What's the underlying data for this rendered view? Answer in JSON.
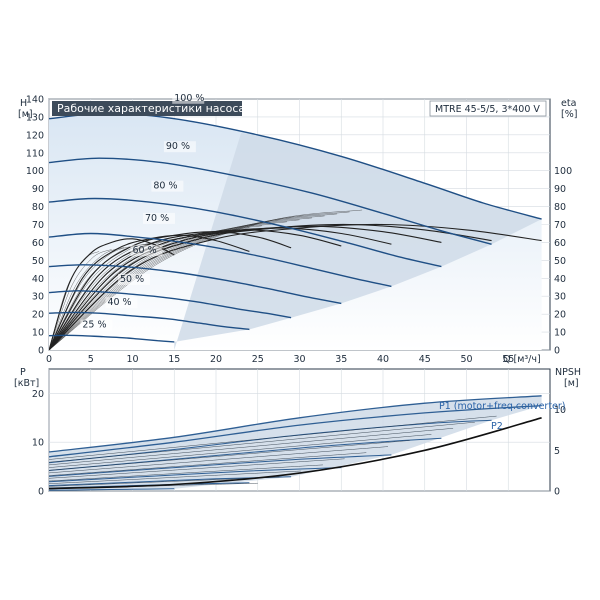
{
  "title": "Рабочие характеристики насоса",
  "model": "MTRE 45-5/5, 3*400 V",
  "colors": {
    "frame": "#2b3a4a",
    "head_curve": "#1f4f85",
    "eta_curve": "#222222",
    "envelope_fill": "#cfdbe8",
    "gradient_top": "#e3edf7",
    "power_curve": "#2f5f94",
    "npsh_curve": "#111111"
  },
  "chart_data": [
    {
      "type": "line",
      "xlabel": "Q [м³/ч]",
      "ylabel": "H\n[м]",
      "y2label": "eta\n[%]",
      "xlim": [
        0,
        60
      ],
      "ylim": [
        0,
        140
      ],
      "x_ticks": [
        0,
        5,
        10,
        15,
        20,
        25,
        30,
        35,
        40,
        45,
        50,
        55
      ],
      "y_ticks": [
        0,
        10,
        20,
        30,
        40,
        50,
        60,
        70,
        80,
        90,
        100,
        110,
        120,
        130,
        140
      ],
      "y2_ticks": [
        0,
        10,
        20,
        30,
        40,
        50,
        60,
        70,
        80,
        90,
        100
      ],
      "y2lim": [
        0,
        140
      ],
      "grid": true,
      "head_series": [
        {
          "name": "100 %",
          "q_max": 59,
          "points": [
            [
              0,
              129
            ],
            [
              7,
              132
            ],
            [
              15,
              129
            ],
            [
              25,
              120
            ],
            [
              35,
              108
            ],
            [
              45,
              93
            ],
            [
              52,
              82
            ],
            [
              59,
              73
            ]
          ]
        },
        {
          "name": "90 %",
          "q_max": 53,
          "points": [
            [
              0,
              104.5
            ],
            [
              6,
              107
            ],
            [
              13.5,
              104.5
            ],
            [
              22.5,
              97
            ],
            [
              31.5,
              87.5
            ],
            [
              40.5,
              75.5
            ],
            [
              47,
              66.5
            ],
            [
              53,
              59
            ]
          ]
        },
        {
          "name": "80 %",
          "q_max": 47,
          "points": [
            [
              0,
              82.5
            ],
            [
              5.5,
              84.5
            ],
            [
              12,
              82.5
            ],
            [
              20,
              77
            ],
            [
              28,
              69
            ],
            [
              36,
              59.5
            ],
            [
              41.5,
              52.5
            ],
            [
              47,
              46.5
            ]
          ]
        },
        {
          "name": "70 %",
          "q_max": 41,
          "points": [
            [
              0,
              63
            ],
            [
              5,
              65
            ],
            [
              10.5,
              63
            ],
            [
              17.5,
              59
            ],
            [
              24.5,
              53
            ],
            [
              31.5,
              45.5
            ],
            [
              36.5,
              40
            ],
            [
              41,
              35.5
            ]
          ]
        },
        {
          "name": "60 %",
          "q_max": 35,
          "points": [
            [
              0,
              46.5
            ],
            [
              4,
              47.5
            ],
            [
              9,
              46.5
            ],
            [
              15,
              43.5
            ],
            [
              21,
              39
            ],
            [
              27,
              33.5
            ],
            [
              31,
              29.5
            ],
            [
              35,
              26
            ]
          ]
        },
        {
          "name": "50 %",
          "q_max": 29,
          "points": [
            [
              0,
              32
            ],
            [
              3.5,
              33
            ],
            [
              7.5,
              32
            ],
            [
              12.5,
              30
            ],
            [
              17.5,
              27
            ],
            [
              22.5,
              23
            ],
            [
              26,
              20.5
            ],
            [
              29,
              18
            ]
          ]
        },
        {
          "name": "40 %",
          "q_max": 24,
          "points": [
            [
              0,
              20.5
            ],
            [
              3,
              21
            ],
            [
              6,
              20.5
            ],
            [
              10,
              19
            ],
            [
              14,
              17.5
            ],
            [
              18,
              15
            ],
            [
              21,
              13
            ],
            [
              24,
              11.5
            ]
          ]
        },
        {
          "name": "25 %",
          "q_max": 15,
          "points": [
            [
              0,
              8
            ],
            [
              2,
              8.2
            ],
            [
              4,
              8
            ],
            [
              6.5,
              7.4
            ],
            [
              9,
              6.8
            ],
            [
              11,
              6
            ],
            [
              13,
              5.2
            ],
            [
              15,
              4.5
            ]
          ]
        }
      ],
      "eta_series": [
        {
          "name": "eta 100 %",
          "points": [
            [
              0,
              0
            ],
            [
              10,
              45
            ],
            [
              20,
              62
            ],
            [
              30,
              68
            ],
            [
              40,
              70
            ],
            [
              50,
              67
            ],
            [
              59,
              61
            ]
          ]
        },
        {
          "name": "eta 90 %",
          "points": [
            [
              0,
              0
            ],
            [
              9,
              45
            ],
            [
              18,
              62
            ],
            [
              27,
              68
            ],
            [
              36,
              70
            ],
            [
              45,
              67
            ],
            [
              53,
              61
            ]
          ]
        },
        {
          "name": "eta 80 %",
          "points": [
            [
              0,
              0
            ],
            [
              8,
              44
            ],
            [
              16,
              61
            ],
            [
              24,
              67
            ],
            [
              32,
              69
            ],
            [
              40,
              66
            ],
            [
              47,
              60
            ]
          ]
        },
        {
          "name": "eta 70 %",
          "points": [
            [
              0,
              0
            ],
            [
              7,
              43
            ],
            [
              14,
              60
            ],
            [
              21,
              66
            ],
            [
              28,
              68
            ],
            [
              35,
              65
            ],
            [
              41,
              59
            ]
          ]
        },
        {
          "name": "eta 60 %",
          "points": [
            [
              0,
              0
            ],
            [
              6,
              42
            ],
            [
              12,
              59
            ],
            [
              18,
              65
            ],
            [
              24,
              67
            ],
            [
              30,
              64
            ],
            [
              35,
              58
            ]
          ]
        },
        {
          "name": "eta 50 %",
          "points": [
            [
              0,
              0
            ],
            [
              5,
              41
            ],
            [
              10,
              58
            ],
            [
              15,
              64
            ],
            [
              20,
              66
            ],
            [
              25,
              63
            ],
            [
              29,
              57
            ]
          ]
        },
        {
          "name": "eta 40 %",
          "points": [
            [
              0,
              0
            ],
            [
              4,
              40
            ],
            [
              8,
              56
            ],
            [
              12,
              62
            ],
            [
              16,
              64
            ],
            [
              20,
              61
            ],
            [
              24,
              55
            ]
          ]
        },
        {
          "name": "eta 25 %",
          "points": [
            [
              0,
              0
            ],
            [
              2.5,
              38
            ],
            [
              5,
              54
            ],
            [
              7.5,
              60
            ],
            [
              10,
              62
            ],
            [
              12.5,
              59
            ],
            [
              15,
              53
            ]
          ]
        }
      ],
      "speed_labels": [
        "100 %",
        "90 %",
        "80 %",
        "70 %",
        "60 %",
        "50 %",
        "40 %",
        "25 %"
      ]
    },
    {
      "type": "line",
      "xlabel": "",
      "ylabel": "P\n[кВт]",
      "y2label": "NPSH\n[м]",
      "xlim": [
        0,
        60
      ],
      "ylim": [
        0,
        25
      ],
      "y_ticks": [
        0,
        10,
        20
      ],
      "y2lim": [
        0,
        15
      ],
      "y2_ticks": [
        0,
        5,
        10
      ],
      "grid": true,
      "series_labels": [
        "P1 (motor+freq.converter)",
        "P2"
      ],
      "power_series": [
        {
          "name": "P1 (motor+freq.converter)",
          "points": [
            [
              0,
              8
            ],
            [
              15,
              11
            ],
            [
              30,
              15
            ],
            [
              45,
              18
            ],
            [
              59,
              19.5
            ]
          ]
        },
        {
          "name": "P2",
          "points": [
            [
              0,
              7
            ],
            [
              15,
              10
            ],
            [
              30,
              13.5
            ],
            [
              45,
              16
            ],
            [
              59,
              17.5
            ]
          ]
        },
        {
          "name": "P 90 %",
          "points": [
            [
              0,
              5.8
            ],
            [
              15,
              8.5
            ],
            [
              30,
              11.5
            ],
            [
              45,
              13.8
            ],
            [
              53,
              14.5
            ]
          ]
        },
        {
          "name": "P 80 %",
          "points": [
            [
              0,
              4.2
            ],
            [
              15,
              6.5
            ],
            [
              30,
              8.8
            ],
            [
              41,
              10.2
            ],
            [
              47,
              10.8
            ]
          ]
        },
        {
          "name": "P 70 %",
          "points": [
            [
              0,
              3
            ],
            [
              15,
              4.8
            ],
            [
              30,
              6.5
            ],
            [
              41,
              7.4
            ]
          ]
        },
        {
          "name": "P 60 %",
          "points": [
            [
              0,
              1.9
            ],
            [
              12,
              3
            ],
            [
              24,
              4.1
            ],
            [
              35,
              4.8
            ]
          ]
        },
        {
          "name": "P 50 %",
          "points": [
            [
              0,
              1.1
            ],
            [
              10,
              1.8
            ],
            [
              20,
              2.5
            ],
            [
              29,
              2.9
            ]
          ]
        },
        {
          "name": "P 40 %",
          "points": [
            [
              0,
              0.6
            ],
            [
              8,
              1
            ],
            [
              16,
              1.4
            ],
            [
              24,
              1.7
            ]
          ]
        },
        {
          "name": "P 25 %",
          "points": [
            [
              0,
              0.15
            ],
            [
              5,
              0.25
            ],
            [
              10,
              0.35
            ],
            [
              15,
              0.45
            ]
          ]
        }
      ],
      "npsh_series": [
        {
          "name": "NPSH",
          "points": [
            [
              0,
              0.3
            ],
            [
              15,
              0.8
            ],
            [
              30,
              2.2
            ],
            [
              45,
              5
            ],
            [
              59,
              9
            ]
          ]
        }
      ]
    }
  ]
}
